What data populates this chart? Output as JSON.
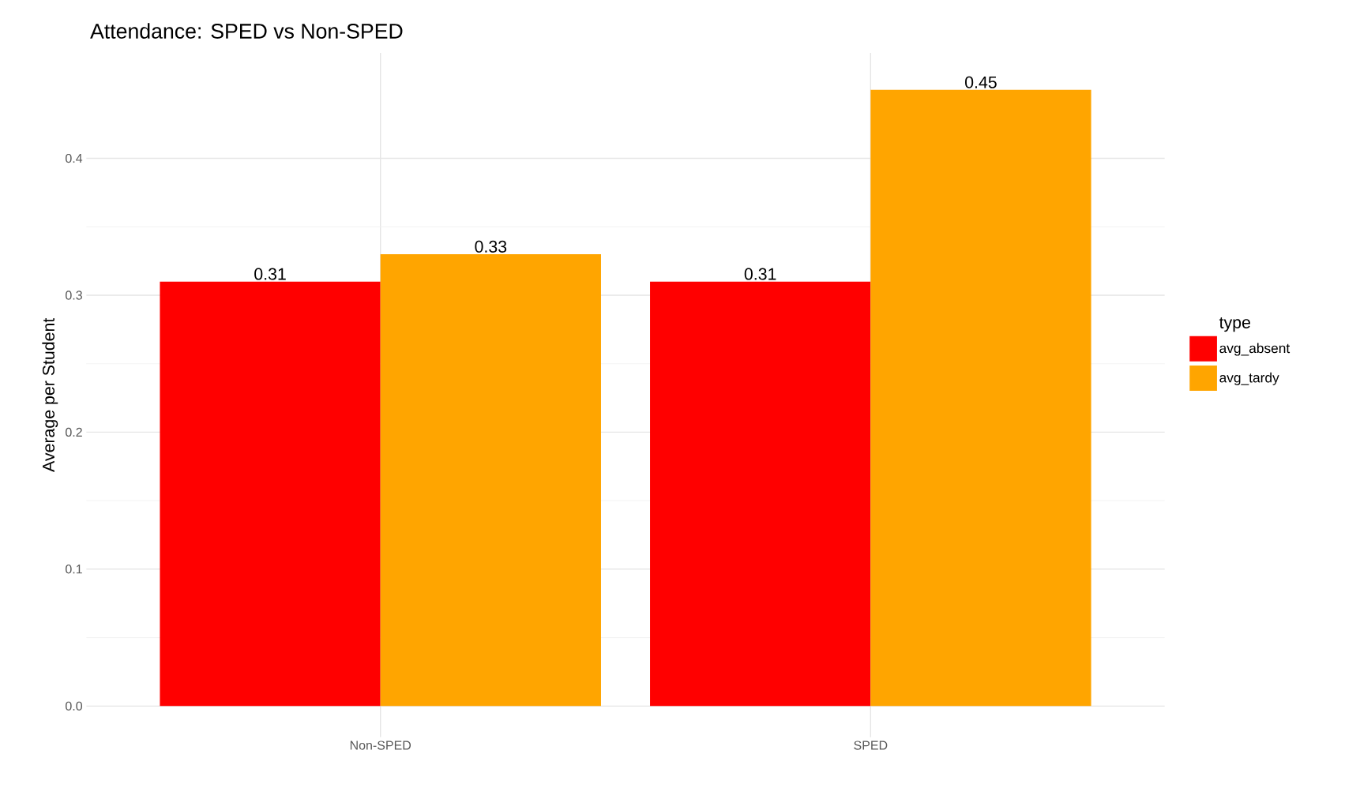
{
  "chart_data": {
    "type": "bar",
    "title": "Attendance: SPED vs Non-SPED",
    "ylabel": "Average per Student",
    "legend_title": "type",
    "categories": [
      "Non-SPED",
      "SPED"
    ],
    "series": [
      {
        "name": "avg_absent",
        "color": "#ff0000",
        "values": [
          0.31,
          0.31
        ]
      },
      {
        "name": "avg_tardy",
        "color": "#ffa500",
        "values": [
          0.33,
          0.45
        ]
      }
    ],
    "ylim": [
      -0.0227,
      0.477
    ],
    "yticks": [
      {
        "value": 0,
        "label": "0.0"
      },
      0.1,
      0.2,
      0.3,
      0.4
    ],
    "grid": true,
    "legend": "right",
    "data_labels": true
  }
}
